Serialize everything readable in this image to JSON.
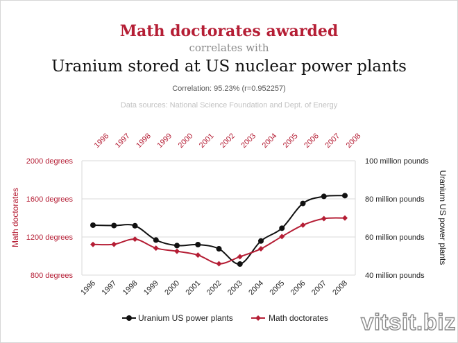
{
  "header": {
    "title": "Math doctorates awarded",
    "connector": "correlates with",
    "subtitle": "Uranium stored at US nuclear power plants",
    "correlation": "Correlation: 95.23% (r=0.952257)",
    "sources": "Data sources: National Science Foundation and Dept. of Energy"
  },
  "watermark": "vitsit.biz",
  "colors": {
    "math": "#b51e35",
    "uranium": "#111111",
    "grid": "#d9d9d9"
  },
  "chart_data": {
    "type": "line",
    "x": [
      "1996",
      "1997",
      "1998",
      "1999",
      "2000",
      "2001",
      "2002",
      "2003",
      "2004",
      "2005",
      "2006",
      "2007",
      "2008"
    ],
    "left_axis": {
      "label": "Math doctorates",
      "ticks": [
        "2000 degrees",
        "1600 degrees",
        "1200 degrees",
        "800 degrees"
      ],
      "tick_values": [
        2000,
        1600,
        1200,
        800
      ],
      "range": [
        800,
        2000
      ]
    },
    "right_axis": {
      "label": "Uranium US power plants",
      "ticks": [
        "100 million pounds",
        "80 million pounds",
        "60 million pounds",
        "40 million pounds"
      ],
      "tick_values": [
        100,
        80,
        60,
        40
      ],
      "range": [
        40,
        100
      ]
    },
    "series": [
      {
        "name": "Uranium US power plants",
        "axis": "right",
        "color": "#111111",
        "marker": "circle",
        "values": [
          66.2,
          66.0,
          65.9,
          58.4,
          55.5,
          56.0,
          53.8,
          45.8,
          57.9,
          64.6,
          77.6,
          81.3,
          81.7
        ]
      },
      {
        "name": "Math doctorates",
        "axis": "left",
        "color": "#b51e35",
        "marker": "diamond",
        "values": [
          1122,
          1123,
          1177,
          1083,
          1050,
          1010,
          919,
          993,
          1076,
          1205,
          1325,
          1393,
          1399
        ]
      }
    ],
    "legend": [
      "Uranium US power plants",
      "Math doctorates"
    ],
    "legend_position": "bottom",
    "grid": true
  }
}
